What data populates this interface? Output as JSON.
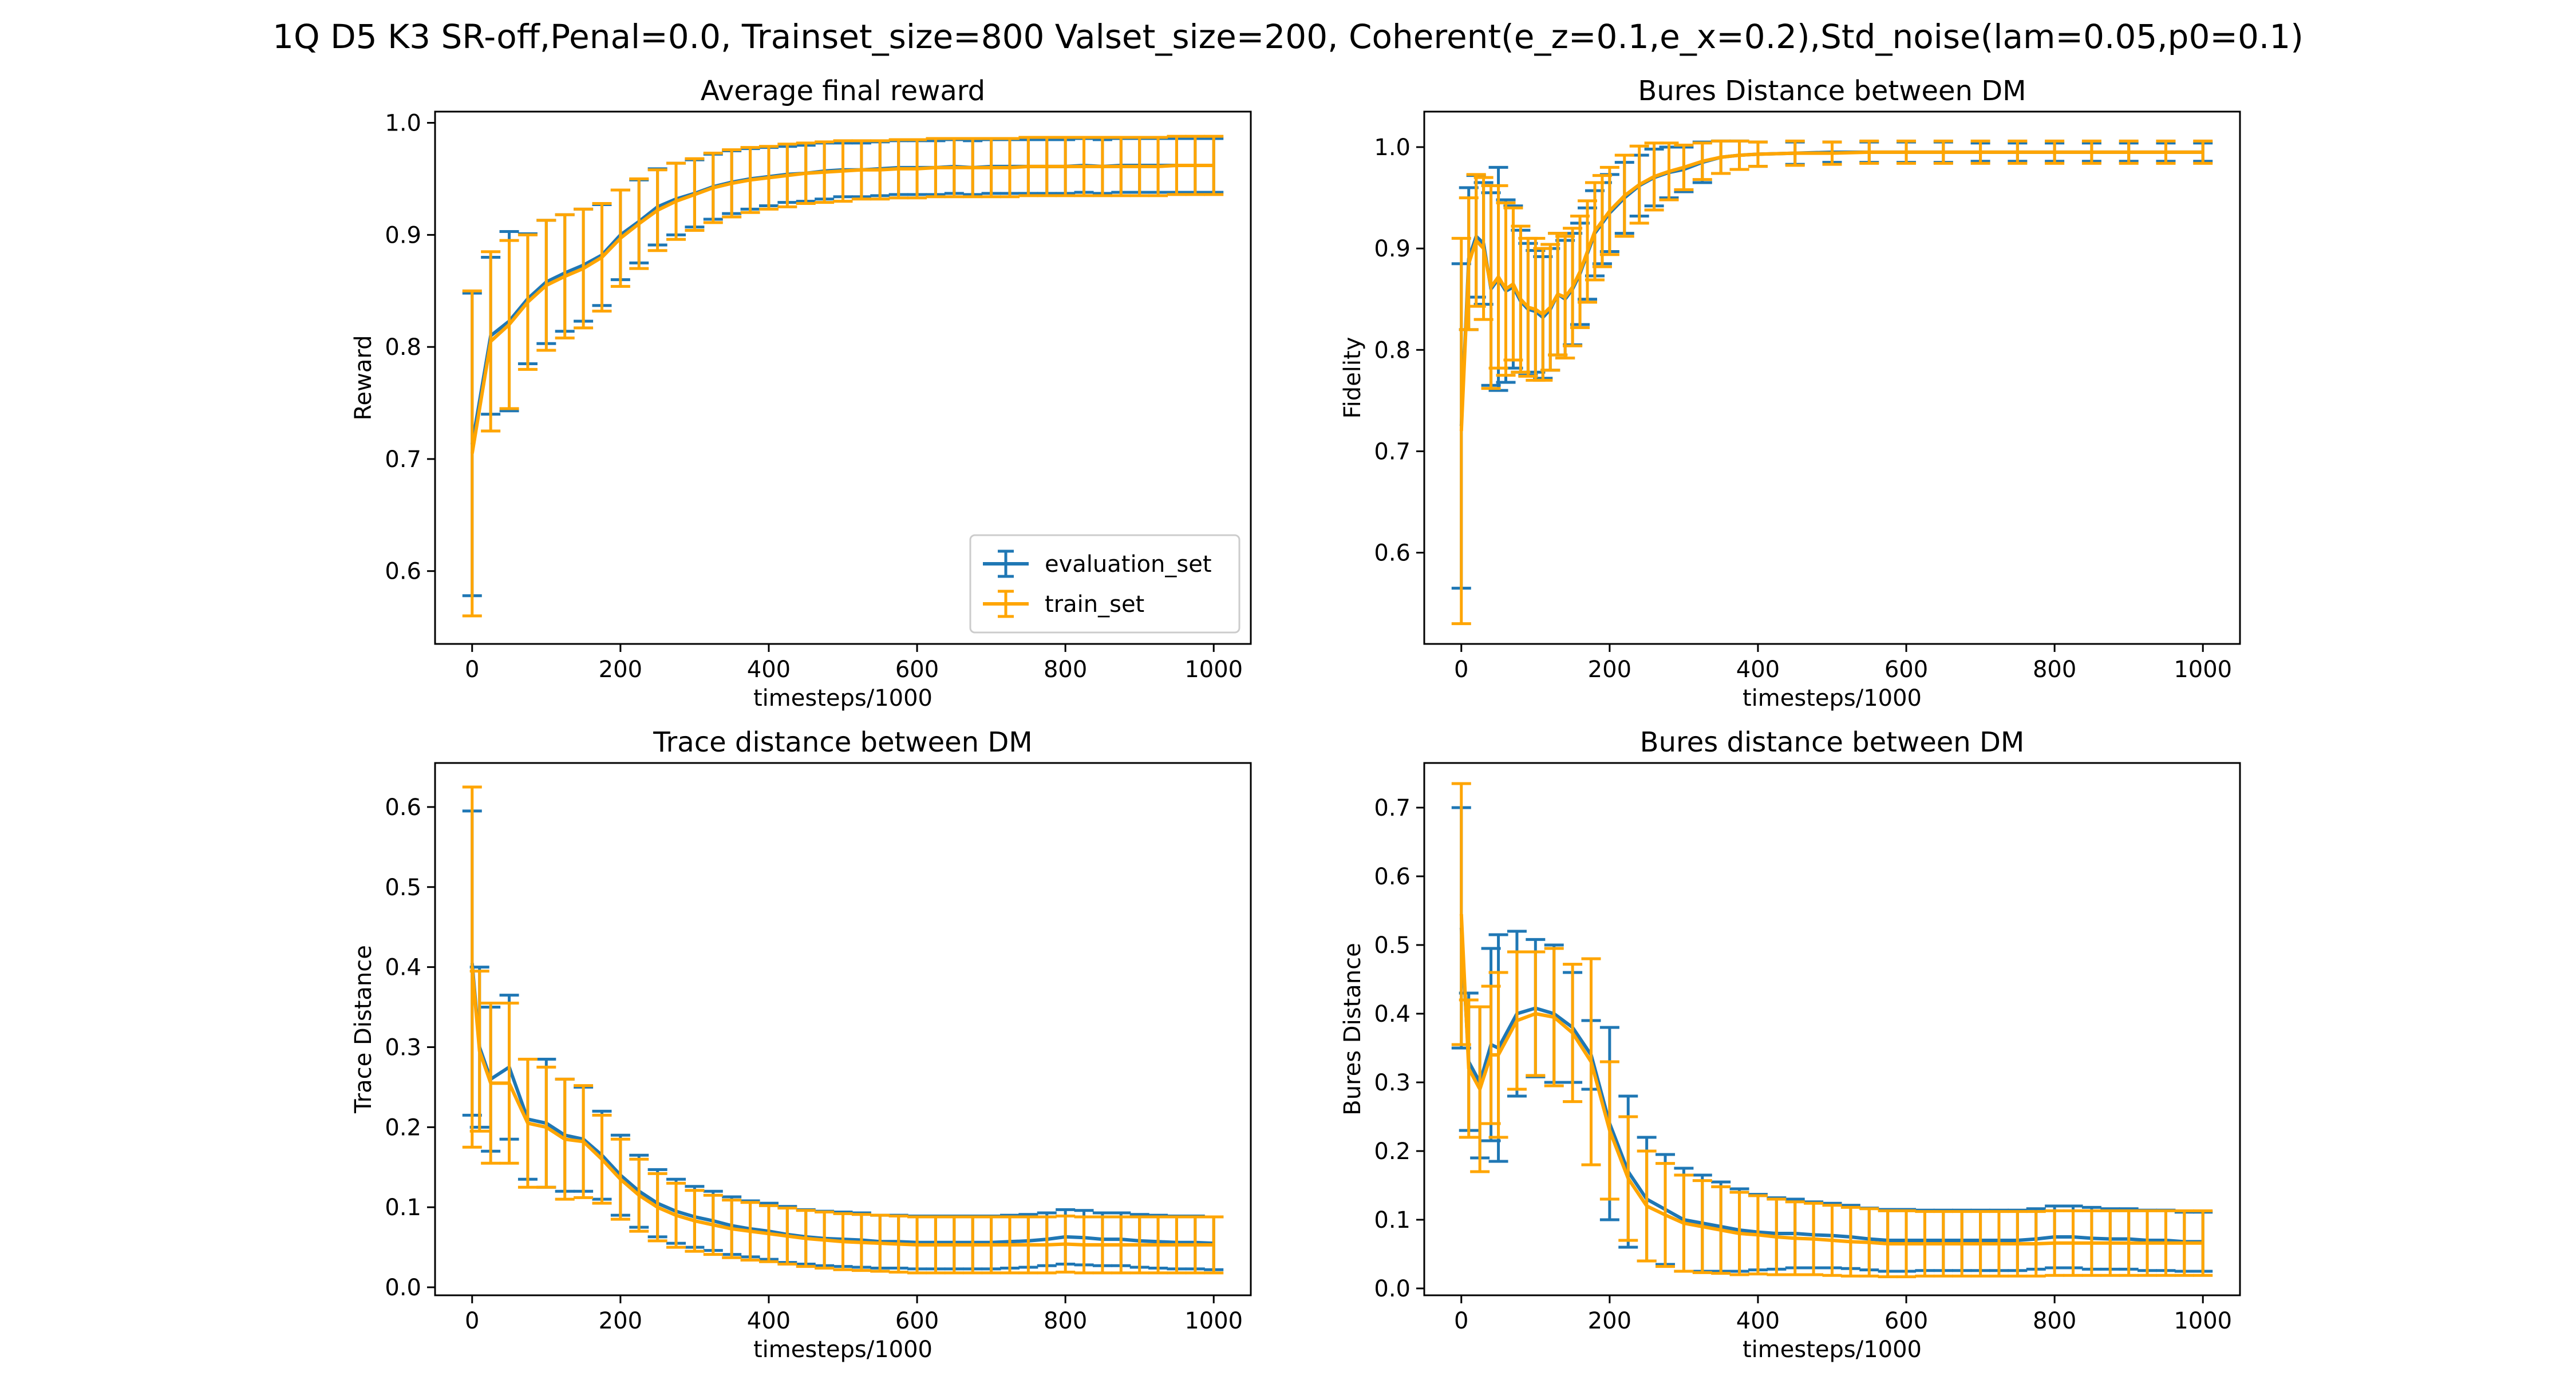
{
  "suptitle": "1Q D5 K3 SR-off,Penal=0.0, Trainset_size=800 Valset_size=200, Coherent(e_z=0.1,e_x=0.2),Std_noise(lam=0.05,p0=0.1)",
  "colors": {
    "evaluation_set": "#1f77b4",
    "train_set": "#ffa500",
    "axes": "#000000"
  },
  "chart_data": [
    {
      "type": "line",
      "title": "Average final reward",
      "xlabel": "timesteps/1000",
      "ylabel": "Reward",
      "xlim": [
        -50,
        1050
      ],
      "ylim": [
        0.535,
        1.01
      ],
      "xticks": [
        0,
        200,
        400,
        600,
        800,
        1000
      ],
      "yticks": [
        0.6,
        0.7,
        0.8,
        0.9,
        1.0
      ],
      "ytick_labels": [
        "0.6",
        "0.7",
        "0.8",
        "0.9",
        "1.0"
      ],
      "legend": "lower-right",
      "x": [
        0,
        25,
        50,
        75,
        100,
        125,
        150,
        175,
        200,
        225,
        250,
        275,
        300,
        325,
        350,
        375,
        400,
        425,
        450,
        475,
        500,
        525,
        550,
        575,
        600,
        625,
        650,
        675,
        700,
        725,
        750,
        775,
        800,
        825,
        850,
        875,
        900,
        925,
        950,
        975,
        1000
      ],
      "series": [
        {
          "name": "evaluation_set",
          "values": [
            0.713,
            0.81,
            0.823,
            0.843,
            0.858,
            0.866,
            0.873,
            0.882,
            0.9,
            0.912,
            0.925,
            0.932,
            0.937,
            0.943,
            0.947,
            0.95,
            0.952,
            0.954,
            0.955,
            0.957,
            0.958,
            0.958,
            0.959,
            0.96,
            0.96,
            0.96,
            0.961,
            0.96,
            0.961,
            0.961,
            0.961,
            0.961,
            0.961,
            0.962,
            0.961,
            0.962,
            0.962,
            0.962,
            0.962,
            0.962,
            0.962
          ],
          "err": [
            0.135,
            0.07,
            0.08,
            0.058,
            0.055,
            0.052,
            0.05,
            0.045,
            0.04,
            0.037,
            0.034,
            0.032,
            0.03,
            0.029,
            0.028,
            0.027,
            0.026,
            0.025,
            0.025,
            0.025,
            0.024,
            0.024,
            0.024,
            0.024,
            0.024,
            0.024,
            0.024,
            0.024,
            0.024,
            0.024,
            0.024,
            0.024,
            0.024,
            0.024,
            0.024,
            0.024,
            0.024,
            0.024,
            0.024,
            0.024,
            0.024
          ]
        },
        {
          "name": "train_set",
          "values": [
            0.705,
            0.805,
            0.82,
            0.84,
            0.855,
            0.863,
            0.87,
            0.88,
            0.897,
            0.91,
            0.922,
            0.93,
            0.936,
            0.942,
            0.946,
            0.949,
            0.951,
            0.953,
            0.955,
            0.956,
            0.957,
            0.958,
            0.958,
            0.959,
            0.959,
            0.96,
            0.96,
            0.96,
            0.96,
            0.96,
            0.961,
            0.961,
            0.961,
            0.961,
            0.961,
            0.961,
            0.961,
            0.961,
            0.962,
            0.962,
            0.962
          ],
          "err": [
            0.145,
            0.08,
            0.075,
            0.06,
            0.058,
            0.055,
            0.053,
            0.048,
            0.043,
            0.04,
            0.036,
            0.034,
            0.032,
            0.031,
            0.03,
            0.029,
            0.028,
            0.028,
            0.027,
            0.027,
            0.027,
            0.026,
            0.026,
            0.026,
            0.026,
            0.026,
            0.026,
            0.026,
            0.026,
            0.026,
            0.026,
            0.026,
            0.026,
            0.026,
            0.026,
            0.026,
            0.026,
            0.026,
            0.026,
            0.026,
            0.026
          ]
        }
      ]
    },
    {
      "type": "line",
      "title": "Bures Distance between DM",
      "xlabel": "timesteps/1000",
      "ylabel": "Fidelity",
      "xlim": [
        -50,
        1050
      ],
      "ylim": [
        0.51,
        1.035
      ],
      "xticks": [
        0,
        200,
        400,
        600,
        800,
        1000
      ],
      "yticks": [
        0.6,
        0.7,
        0.8,
        0.9,
        1.0
      ],
      "ytick_labels": [
        "0.6",
        "0.7",
        "0.8",
        "0.9",
        "1.0"
      ],
      "x": [
        0,
        10,
        20,
        30,
        40,
        50,
        60,
        70,
        80,
        90,
        100,
        110,
        120,
        130,
        140,
        150,
        160,
        170,
        180,
        190,
        200,
        220,
        240,
        260,
        280,
        300,
        325,
        350,
        375,
        400,
        450,
        500,
        550,
        600,
        650,
        700,
        750,
        800,
        850,
        900,
        950,
        1000
      ],
      "series": [
        {
          "name": "evaluation_set",
          "values": [
            0.725,
            0.89,
            0.912,
            0.905,
            0.86,
            0.87,
            0.858,
            0.862,
            0.848,
            0.84,
            0.838,
            0.832,
            0.84,
            0.855,
            0.85,
            0.86,
            0.875,
            0.895,
            0.915,
            0.925,
            0.935,
            0.95,
            0.962,
            0.97,
            0.975,
            0.978,
            0.985,
            0.99,
            0.992,
            0.993,
            0.994,
            0.995,
            0.995,
            0.995,
            0.995,
            0.995,
            0.995,
            0.995,
            0.995,
            0.995,
            0.995,
            0.995
          ],
          "err": [
            0.16,
            0.07,
            0.06,
            0.06,
            0.095,
            0.11,
            0.09,
            0.08,
            0.07,
            0.065,
            0.06,
            0.06,
            0.06,
            0.06,
            0.058,
            0.055,
            0.05,
            0.045,
            0.042,
            0.04,
            0.038,
            0.035,
            0.03,
            0.028,
            0.025,
            0.022,
            0.02,
            0.016,
            0.014,
            0.012,
            0.011,
            0.01,
            0.01,
            0.01,
            0.01,
            0.009,
            0.009,
            0.009,
            0.009,
            0.009,
            0.009,
            0.009
          ]
        },
        {
          "name": "train_set",
          "values": [
            0.72,
            0.885,
            0.908,
            0.9,
            0.862,
            0.872,
            0.86,
            0.865,
            0.85,
            0.842,
            0.84,
            0.835,
            0.842,
            0.855,
            0.852,
            0.862,
            0.877,
            0.897,
            0.917,
            0.927,
            0.937,
            0.952,
            0.963,
            0.971,
            0.976,
            0.98,
            0.986,
            0.99,
            0.992,
            0.993,
            0.994,
            0.994,
            0.995,
            0.995,
            0.995,
            0.995,
            0.995,
            0.995,
            0.995,
            0.995,
            0.995,
            0.995
          ],
          "err": [
            0.19,
            0.065,
            0.065,
            0.07,
            0.1,
            0.09,
            0.085,
            0.075,
            0.072,
            0.068,
            0.07,
            0.065,
            0.062,
            0.06,
            0.06,
            0.058,
            0.055,
            0.05,
            0.048,
            0.045,
            0.043,
            0.04,
            0.038,
            0.033,
            0.028,
            0.022,
            0.018,
            0.016,
            0.014,
            0.012,
            0.012,
            0.011,
            0.011,
            0.011,
            0.011,
            0.011,
            0.011,
            0.011,
            0.011,
            0.011,
            0.011,
            0.011
          ]
        }
      ]
    },
    {
      "type": "line",
      "title": "Trace distance between DM",
      "xlabel": "timesteps/1000",
      "ylabel": "Trace Distance",
      "xlim": [
        -50,
        1050
      ],
      "ylim": [
        -0.01,
        0.655
      ],
      "xticks": [
        0,
        200,
        400,
        600,
        800,
        1000
      ],
      "yticks": [
        0.0,
        0.1,
        0.2,
        0.3,
        0.4,
        0.5,
        0.6
      ],
      "ytick_labels": [
        "0.0",
        "0.1",
        "0.2",
        "0.3",
        "0.4",
        "0.5",
        "0.6"
      ],
      "x": [
        0,
        10,
        25,
        50,
        75,
        100,
        125,
        150,
        175,
        200,
        225,
        250,
        275,
        300,
        325,
        350,
        375,
        400,
        425,
        450,
        475,
        500,
        525,
        550,
        575,
        600,
        625,
        650,
        675,
        700,
        725,
        750,
        775,
        800,
        825,
        850,
        875,
        900,
        925,
        950,
        975,
        1000
      ],
      "series": [
        {
          "name": "evaluation_set",
          "values": [
            0.405,
            0.3,
            0.26,
            0.275,
            0.21,
            0.205,
            0.19,
            0.185,
            0.165,
            0.14,
            0.12,
            0.105,
            0.095,
            0.088,
            0.083,
            0.077,
            0.073,
            0.07,
            0.066,
            0.063,
            0.061,
            0.06,
            0.059,
            0.057,
            0.057,
            0.056,
            0.056,
            0.056,
            0.056,
            0.056,
            0.057,
            0.058,
            0.06,
            0.063,
            0.062,
            0.06,
            0.06,
            0.058,
            0.057,
            0.056,
            0.056,
            0.055
          ],
          "err": [
            0.19,
            0.1,
            0.09,
            0.09,
            0.075,
            0.08,
            0.07,
            0.065,
            0.055,
            0.05,
            0.045,
            0.042,
            0.04,
            0.038,
            0.037,
            0.036,
            0.035,
            0.035,
            0.035,
            0.034,
            0.034,
            0.034,
            0.034,
            0.033,
            0.033,
            0.033,
            0.033,
            0.033,
            0.033,
            0.033,
            0.033,
            0.033,
            0.033,
            0.034,
            0.034,
            0.033,
            0.033,
            0.033,
            0.033,
            0.033,
            0.033,
            0.033
          ]
        },
        {
          "name": "train_set",
          "values": [
            0.4,
            0.295,
            0.255,
            0.255,
            0.205,
            0.2,
            0.185,
            0.182,
            0.16,
            0.135,
            0.115,
            0.1,
            0.09,
            0.083,
            0.078,
            0.073,
            0.07,
            0.067,
            0.064,
            0.061,
            0.059,
            0.057,
            0.056,
            0.055,
            0.054,
            0.053,
            0.053,
            0.053,
            0.053,
            0.053,
            0.053,
            0.053,
            0.053,
            0.054,
            0.053,
            0.053,
            0.053,
            0.053,
            0.053,
            0.053,
            0.053,
            0.053
          ],
          "err": [
            0.225,
            0.1,
            0.1,
            0.1,
            0.08,
            0.075,
            0.075,
            0.07,
            0.055,
            0.05,
            0.045,
            0.042,
            0.04,
            0.038,
            0.037,
            0.036,
            0.036,
            0.035,
            0.035,
            0.035,
            0.035,
            0.035,
            0.035,
            0.035,
            0.035,
            0.035,
            0.035,
            0.035,
            0.035,
            0.035,
            0.035,
            0.035,
            0.035,
            0.035,
            0.035,
            0.035,
            0.035,
            0.035,
            0.035,
            0.035,
            0.035,
            0.035
          ]
        }
      ]
    },
    {
      "type": "line",
      "title": "Bures distance between DM",
      "xlabel": "timesteps/1000",
      "ylabel": "Bures Distance",
      "xlim": [
        -50,
        1050
      ],
      "ylim": [
        -0.01,
        0.765
      ],
      "xticks": [
        0,
        200,
        400,
        600,
        800,
        1000
      ],
      "yticks": [
        0.0,
        0.1,
        0.2,
        0.3,
        0.4,
        0.5,
        0.6,
        0.7
      ],
      "ytick_labels": [
        "0.0",
        "0.1",
        "0.2",
        "0.3",
        "0.4",
        "0.5",
        "0.6",
        "0.7"
      ],
      "x": [
        0,
        10,
        25,
        40,
        50,
        75,
        100,
        125,
        150,
        175,
        200,
        225,
        250,
        275,
        300,
        325,
        350,
        375,
        400,
        425,
        450,
        475,
        500,
        525,
        550,
        575,
        600,
        625,
        650,
        675,
        700,
        725,
        750,
        775,
        800,
        825,
        850,
        875,
        900,
        925,
        950,
        975,
        1000
      ],
      "series": [
        {
          "name": "evaluation_set",
          "values": [
            0.525,
            0.33,
            0.3,
            0.355,
            0.35,
            0.4,
            0.408,
            0.4,
            0.38,
            0.34,
            0.24,
            0.17,
            0.13,
            0.115,
            0.1,
            0.095,
            0.09,
            0.085,
            0.082,
            0.08,
            0.08,
            0.078,
            0.077,
            0.075,
            0.072,
            0.07,
            0.07,
            0.07,
            0.07,
            0.07,
            0.07,
            0.07,
            0.07,
            0.072,
            0.075,
            0.075,
            0.073,
            0.072,
            0.072,
            0.07,
            0.07,
            0.068,
            0.068
          ],
          "err": [
            0.175,
            0.1,
            0.11,
            0.14,
            0.165,
            0.12,
            0.1,
            0.1,
            0.08,
            0.05,
            0.14,
            0.11,
            0.09,
            0.08,
            0.075,
            0.07,
            0.065,
            0.06,
            0.055,
            0.052,
            0.05,
            0.048,
            0.047,
            0.046,
            0.045,
            0.045,
            0.045,
            0.044,
            0.044,
            0.044,
            0.044,
            0.044,
            0.044,
            0.044,
            0.045,
            0.045,
            0.045,
            0.044,
            0.044,
            0.044,
            0.044,
            0.043,
            0.043
          ]
        },
        {
          "name": "train_set",
          "values": [
            0.545,
            0.32,
            0.29,
            0.34,
            0.34,
            0.39,
            0.4,
            0.395,
            0.372,
            0.33,
            0.23,
            0.16,
            0.12,
            0.107,
            0.095,
            0.09,
            0.085,
            0.08,
            0.078,
            0.075,
            0.073,
            0.072,
            0.07,
            0.068,
            0.067,
            0.065,
            0.065,
            0.065,
            0.065,
            0.065,
            0.065,
            0.065,
            0.065,
            0.065,
            0.066,
            0.066,
            0.066,
            0.066,
            0.066,
            0.066,
            0.066,
            0.066,
            0.066
          ],
          "err": [
            0.19,
            0.1,
            0.12,
            0.1,
            0.12,
            0.1,
            0.09,
            0.1,
            0.1,
            0.15,
            0.1,
            0.09,
            0.08,
            0.075,
            0.07,
            0.067,
            0.063,
            0.06,
            0.057,
            0.055,
            0.053,
            0.052,
            0.051,
            0.05,
            0.049,
            0.048,
            0.048,
            0.047,
            0.047,
            0.047,
            0.047,
            0.047,
            0.047,
            0.047,
            0.047,
            0.047,
            0.047,
            0.047,
            0.047,
            0.047,
            0.047,
            0.047,
            0.047
          ]
        }
      ]
    }
  ]
}
